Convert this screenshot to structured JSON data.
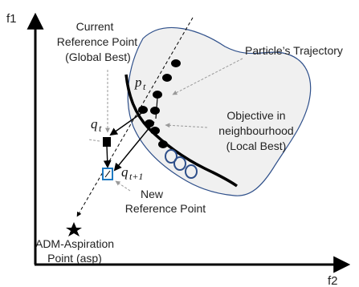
{
  "axes": {
    "y_label": "f1",
    "x_label": "f2"
  },
  "labels": {
    "current_reference": [
      "Current",
      "Reference Point",
      "(Global Best)"
    ],
    "particle_trajectory": "Particle’s Trajectory",
    "objective_neighbourhood": [
      "Objective in",
      "neighbourhood",
      "(Local Best)"
    ],
    "new_reference": [
      "New",
      "Reference Point"
    ],
    "aspiration": [
      "ADM-Aspiration",
      "Point (asp)"
    ]
  },
  "math": {
    "p": "p",
    "p_sub": "t",
    "q_t": "q",
    "q_t_sub": "t",
    "q_t1": "q",
    "q_t1_sub": "t+1"
  },
  "colors": {
    "region_fill": "#f0f0f0",
    "region_stroke": "#2e4f8a",
    "front": "#000000",
    "open_markers": "#2e4f8a",
    "new_reference_marker": "#1f7ac2",
    "leader_lines": "#9a9a9a"
  }
}
